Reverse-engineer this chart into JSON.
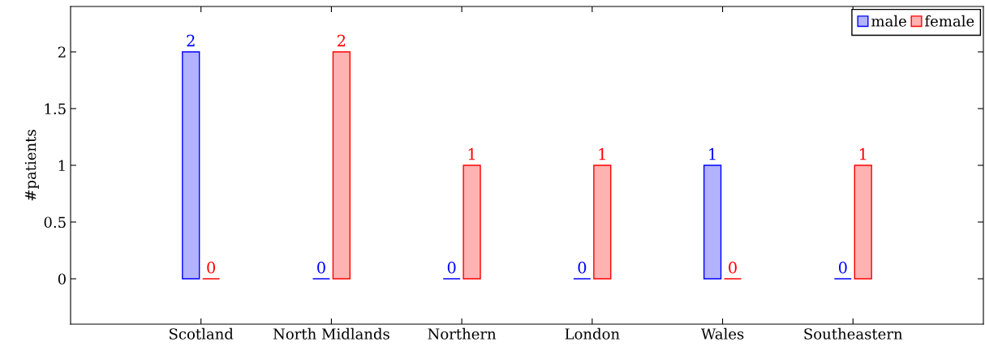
{
  "chart_data": {
    "type": "bar",
    "ylabel": "#patients",
    "categories": [
      "Scotland",
      "North Midlands",
      "Northern",
      "London",
      "Wales",
      "Southeastern"
    ],
    "series": [
      {
        "name": "male",
        "color": "#0000ff",
        "values": [
          2,
          0,
          0,
          0,
          1,
          0
        ]
      },
      {
        "name": "female",
        "color": "#ff0000",
        "values": [
          0,
          2,
          1,
          1,
          0,
          1
        ]
      }
    ],
    "ylim": [
      -0.4,
      2.4
    ],
    "yticks": [
      0,
      0.5,
      1,
      1.5,
      2
    ],
    "data_labels": true,
    "legend": "top right",
    "grid": false
  }
}
